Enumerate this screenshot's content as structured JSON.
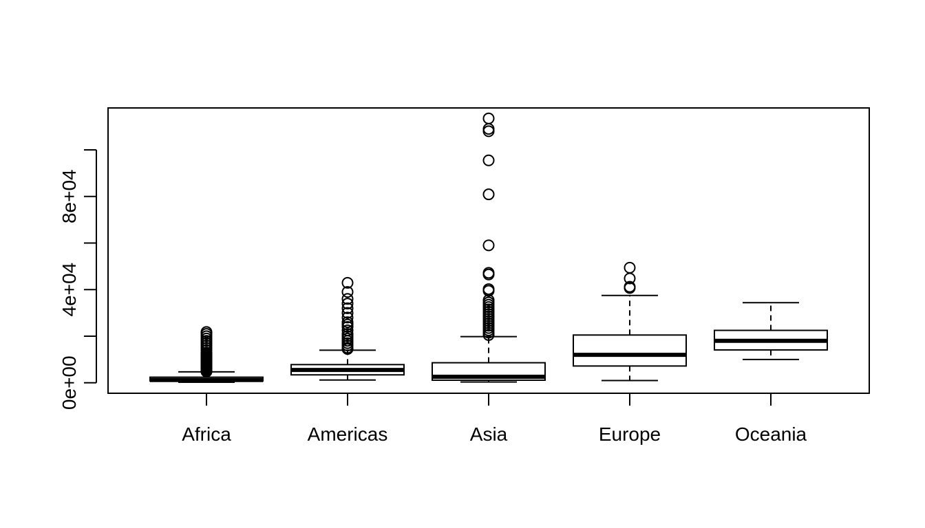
{
  "chart_data": {
    "type": "boxplot",
    "categories": [
      "Africa",
      "Americas",
      "Asia",
      "Europe",
      "Oceania"
    ],
    "ylim": [
      -4500,
      118000
    ],
    "y_ticks": [
      0,
      20000,
      40000,
      60000,
      80000,
      100000
    ],
    "y_tick_labels": [
      {
        "value": 0,
        "label": "0e+00"
      },
      {
        "value": 40000,
        "label": "4e+04"
      },
      {
        "value": 80000,
        "label": "8e+04"
      }
    ],
    "boxes": [
      {
        "category": "Africa",
        "whisker_low": 240,
        "q1": 760,
        "median": 1200,
        "q3": 2400,
        "whisker_high": 4700,
        "outliers": [
          4800,
          5000,
          5200,
          5400,
          5600,
          5800,
          6000,
          6200,
          6500,
          6800,
          7000,
          7400,
          7800,
          8200,
          8600,
          9000,
          9500,
          10000,
          10500,
          11000,
          11500,
          12000,
          12500,
          13000,
          14000,
          15000,
          16000,
          17000,
          18000,
          19000,
          20000,
          21000,
          21800
        ]
      },
      {
        "category": "Americas",
        "whisker_low": 1200,
        "q1": 3400,
        "median": 5500,
        "q3": 7800,
        "whisker_high": 14000,
        "outliers": [
          14500,
          15000,
          16000,
          17000,
          18000,
          19000,
          20000,
          21000,
          22500,
          24000,
          25000,
          26000,
          28000,
          30000,
          32000,
          34000,
          36000,
          39000,
          42900
        ]
      },
      {
        "category": "Asia",
        "whisker_low": 330,
        "q1": 1100,
        "median": 2600,
        "q3": 8600,
        "whisker_high": 19800,
        "outliers": [
          20500,
          21500,
          22500,
          23500,
          24500,
          25500,
          26500,
          27500,
          28500,
          29500,
          30500,
          31500,
          32500,
          33500,
          34500,
          35500,
          39500,
          40200,
          46500,
          47200,
          59000,
          80900,
          95500,
          108000,
          109000,
          113500
        ]
      },
      {
        "category": "Europe",
        "whisker_low": 970,
        "q1": 7200,
        "median": 12000,
        "q3": 20500,
        "whisker_high": 37500,
        "outliers": [
          40700,
          41200,
          44800,
          49400
        ]
      },
      {
        "category": "Oceania",
        "whisker_low": 10000,
        "q1": 14100,
        "median": 18000,
        "q3": 22500,
        "whisker_high": 34400,
        "outliers": []
      }
    ],
    "grid": false,
    "legend": "none"
  }
}
